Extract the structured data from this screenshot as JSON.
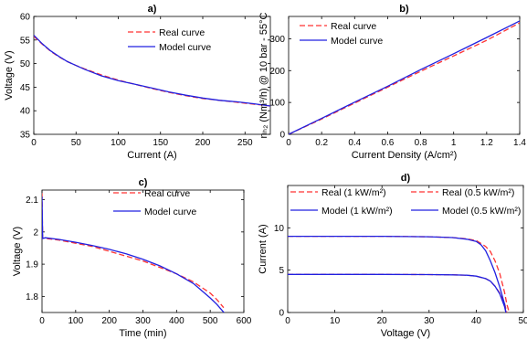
{
  "colors": {
    "real": "#ff3333",
    "model": "#2020e0",
    "axis": "#000000"
  },
  "chart_data": [
    {
      "panel": "a)",
      "type": "line",
      "title": "a)",
      "xlabel": "Current (A)",
      "ylabel": "Voltage (V)",
      "xlim": [
        0,
        280
      ],
      "ylim": [
        35,
        60
      ],
      "xticks": [
        0,
        50,
        100,
        150,
        200,
        250
      ],
      "yticks": [
        35,
        40,
        45,
        50,
        55,
        60
      ],
      "legend": "top-right",
      "grid": false,
      "series": [
        {
          "name": "Real curve",
          "style": "dashed",
          "color": "#ff3333",
          "x": [
            0,
            10,
            20,
            30,
            40,
            50,
            60,
            80,
            100,
            120,
            140,
            160,
            180,
            200,
            220,
            240,
            260,
            280
          ],
          "y": [
            55.8,
            54.1,
            52.6,
            51.4,
            50.4,
            49.6,
            48.9,
            47.6,
            46.5,
            45.6,
            44.7,
            43.9,
            43.2,
            42.6,
            42.2,
            41.8,
            41.4,
            41.0
          ]
        },
        {
          "name": "Model curve",
          "style": "solid",
          "color": "#2020e0",
          "x": [
            0,
            10,
            20,
            30,
            40,
            50,
            60,
            80,
            100,
            120,
            140,
            160,
            180,
            200,
            220,
            240,
            260,
            280
          ],
          "y": [
            56.0,
            54.2,
            52.7,
            51.5,
            50.4,
            49.6,
            48.8,
            47.4,
            46.4,
            45.6,
            44.8,
            44.0,
            43.3,
            42.7,
            42.2,
            41.9,
            41.5,
            41.0
          ]
        }
      ]
    },
    {
      "panel": "b)",
      "type": "line",
      "title": "b)",
      "xlabel": "Current Density (A/cm²)",
      "ylabel": "nₕ₂ (Nm³/h) @ 10 bar - 55°C",
      "xlim": [
        0,
        1.4
      ],
      "ylim": [
        0,
        370
      ],
      "xticks": [
        0,
        0.2,
        0.4,
        0.6,
        0.8,
        1,
        1.2,
        1.4
      ],
      "yticks": [
        0,
        100,
        200,
        300
      ],
      "legend": "top-left",
      "grid": false,
      "series": [
        {
          "name": "Real curve",
          "style": "dashed",
          "color": "#ff3333",
          "x": [
            0,
            0.2,
            0.4,
            0.6,
            0.8,
            1.0,
            1.2,
            1.4
          ],
          "y": [
            0,
            48,
            98,
            148,
            198,
            246,
            295,
            350
          ]
        },
        {
          "name": "Model curve",
          "style": "solid",
          "color": "#2020e0",
          "x": [
            0,
            0.2,
            0.4,
            0.6,
            0.8,
            1.0,
            1.2,
            1.4
          ],
          "y": [
            0,
            50,
            101,
            151,
            203,
            253,
            304,
            356
          ]
        }
      ]
    },
    {
      "panel": "c)",
      "type": "line",
      "title": "c)",
      "xlabel": "Time (min)",
      "ylabel": "Voltage (V)",
      "xlim": [
        0,
        600
      ],
      "ylim": [
        1.75,
        2.13
      ],
      "xticks": [
        0,
        100,
        200,
        300,
        400,
        500,
        600
      ],
      "yticks": [
        1.8,
        1.9,
        2,
        2.1
      ],
      "legend": "top-right",
      "grid": false,
      "series": [
        {
          "name": "Real curve",
          "style": "dashed",
          "color": "#ff3333",
          "x": [
            0,
            2,
            10,
            50,
            100,
            150,
            200,
            250,
            300,
            350,
            400,
            450,
            500,
            520,
            540
          ],
          "y": [
            2.12,
            1.98,
            1.98,
            1.975,
            1.965,
            1.955,
            1.94,
            1.925,
            1.91,
            1.89,
            1.87,
            1.845,
            1.81,
            1.79,
            1.765
          ]
        },
        {
          "name": "Model curve",
          "style": "solid",
          "color": "#2020e0",
          "x": [
            0,
            2,
            10,
            50,
            100,
            150,
            200,
            250,
            300,
            350,
            400,
            450,
            500,
            520,
            545
          ],
          "y": [
            2.11,
            1.98,
            1.982,
            1.977,
            1.968,
            1.958,
            1.946,
            1.932,
            1.915,
            1.895,
            1.87,
            1.84,
            1.795,
            1.775,
            1.745
          ]
        }
      ]
    },
    {
      "panel": "d)",
      "type": "line",
      "title": "d)",
      "xlabel": "Voltage (V)",
      "ylabel": "Current (A)",
      "xlim": [
        0,
        50
      ],
      "ylim": [
        0,
        15
      ],
      "xticks": [
        0,
        10,
        20,
        30,
        40,
        50
      ],
      "yticks": [
        0,
        5,
        10
      ],
      "legend": "top",
      "grid": false,
      "series": [
        {
          "name": "Real (1 kW/m²)",
          "style": "dashed",
          "color": "#ff3333",
          "x": [
            0,
            10,
            20,
            30,
            35,
            38,
            40,
            42,
            43,
            44,
            45,
            46,
            46.5,
            47
          ],
          "y": [
            9.0,
            9.0,
            9.0,
            8.95,
            8.85,
            8.7,
            8.5,
            7.8,
            7.2,
            6.1,
            4.6,
            2.4,
            1.0,
            0
          ]
        },
        {
          "name": "Real (0.5 kW/m²)",
          "style": "dashed",
          "color": "#ff3333",
          "x": [
            0,
            10,
            20,
            30,
            35,
            38,
            40,
            42,
            43,
            44,
            45,
            46,
            46.5
          ],
          "y": [
            4.5,
            4.5,
            4.5,
            4.48,
            4.45,
            4.4,
            4.3,
            4.0,
            3.7,
            3.1,
            2.3,
            1.1,
            0
          ]
        },
        {
          "name": "Model (1 kW/m²)",
          "style": "solid",
          "color": "#2020e0",
          "x": [
            0,
            10,
            20,
            30,
            35,
            38,
            40,
            41,
            42,
            43,
            44,
            45,
            46,
            46.3
          ],
          "y": [
            9.0,
            9.0,
            9.0,
            8.95,
            8.85,
            8.65,
            8.4,
            8.0,
            7.3,
            6.1,
            4.7,
            3.0,
            1.0,
            0
          ]
        },
        {
          "name": "Model (0.5 kW/m²)",
          "style": "solid",
          "color": "#2020e0",
          "x": [
            0,
            10,
            20,
            30,
            35,
            38,
            40,
            42,
            43,
            44,
            45,
            46,
            46.3
          ],
          "y": [
            4.5,
            4.5,
            4.5,
            4.48,
            4.45,
            4.4,
            4.3,
            4.0,
            3.7,
            3.1,
            2.2,
            0.7,
            0
          ]
        }
      ]
    }
  ]
}
